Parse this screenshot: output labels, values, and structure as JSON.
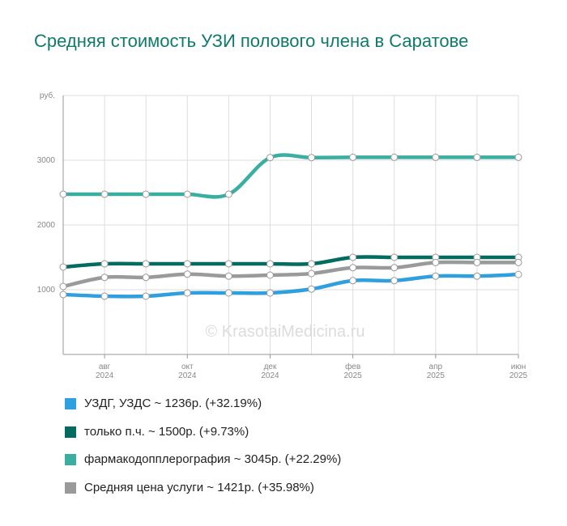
{
  "chart_data": {
    "type": "line",
    "title": "Средняя стоимость УЗИ полового члена в Саратове",
    "y_unit": "руб.",
    "watermark": "© KrasotaiMedicina.ru",
    "categories": [
      null,
      "авг\n2024",
      null,
      "окт\n2024",
      null,
      "дек\n2024",
      null,
      "фев\n2025",
      null,
      "апр\n2025",
      null,
      "июн\n2025"
    ],
    "series": [
      {
        "name": "УЗДГ, УЗДС ~ 1236р. (+32.19%)",
        "color": "#2e9fdf",
        "values": [
          925,
          900,
          900,
          950,
          950,
          950,
          1010,
          1140,
          1140,
          1210,
          1210,
          1236
        ]
      },
      {
        "name": "только п.ч. ~ 1500р. (+9.73%)",
        "color": "#046b61",
        "values": [
          1350,
          1400,
          1400,
          1400,
          1400,
          1400,
          1400,
          1500,
          1500,
          1500,
          1500,
          1500
        ]
      },
      {
        "name": "фармакодопплерография ~ 3045р. (+22.29%)",
        "color": "#3aaea0",
        "values": [
          2475,
          2475,
          2475,
          2475,
          2475,
          3040,
          3040,
          3045,
          3045,
          3045,
          3045,
          3045
        ]
      },
      {
        "name": "Средняя цена услуги ~ 1421р. (+35.98%)",
        "color": "#9a9a9a",
        "values": [
          1050,
          1190,
          1190,
          1240,
          1210,
          1225,
          1250,
          1340,
          1340,
          1420,
          1420,
          1421
        ]
      }
    ],
    "ylim": [
      0,
      4000
    ],
    "yticks": [
      1000,
      2000,
      3000
    ],
    "grid": true
  }
}
